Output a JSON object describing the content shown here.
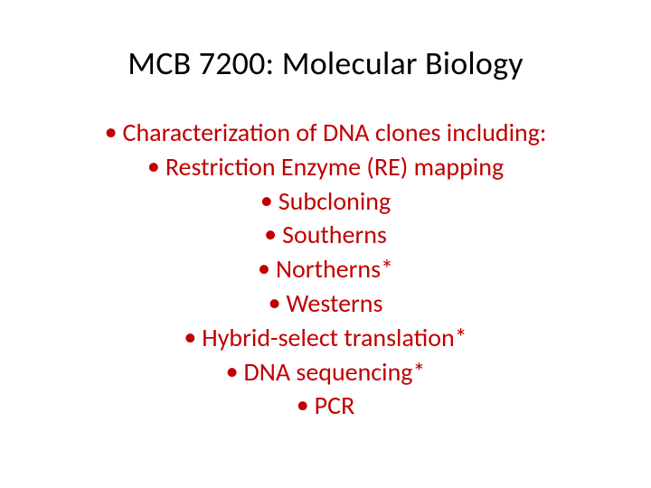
{
  "slide": {
    "title": "MCB 7200: Molecular Biology",
    "title_color": "#000000",
    "title_fontsize": 36,
    "title_fontweight": 400,
    "body_color": "#c00000",
    "body_fontsize": 28,
    "bullet_glyph": "•",
    "background_color": "#ffffff",
    "lines": [
      "Characterization of DNA clones including:",
      "Restriction Enzyme (RE) mapping",
      "Subcloning",
      "Southerns",
      "Northerns*",
      "Westerns",
      "Hybrid-select translation*",
      "DNA sequencing*",
      "PCR"
    ]
  }
}
